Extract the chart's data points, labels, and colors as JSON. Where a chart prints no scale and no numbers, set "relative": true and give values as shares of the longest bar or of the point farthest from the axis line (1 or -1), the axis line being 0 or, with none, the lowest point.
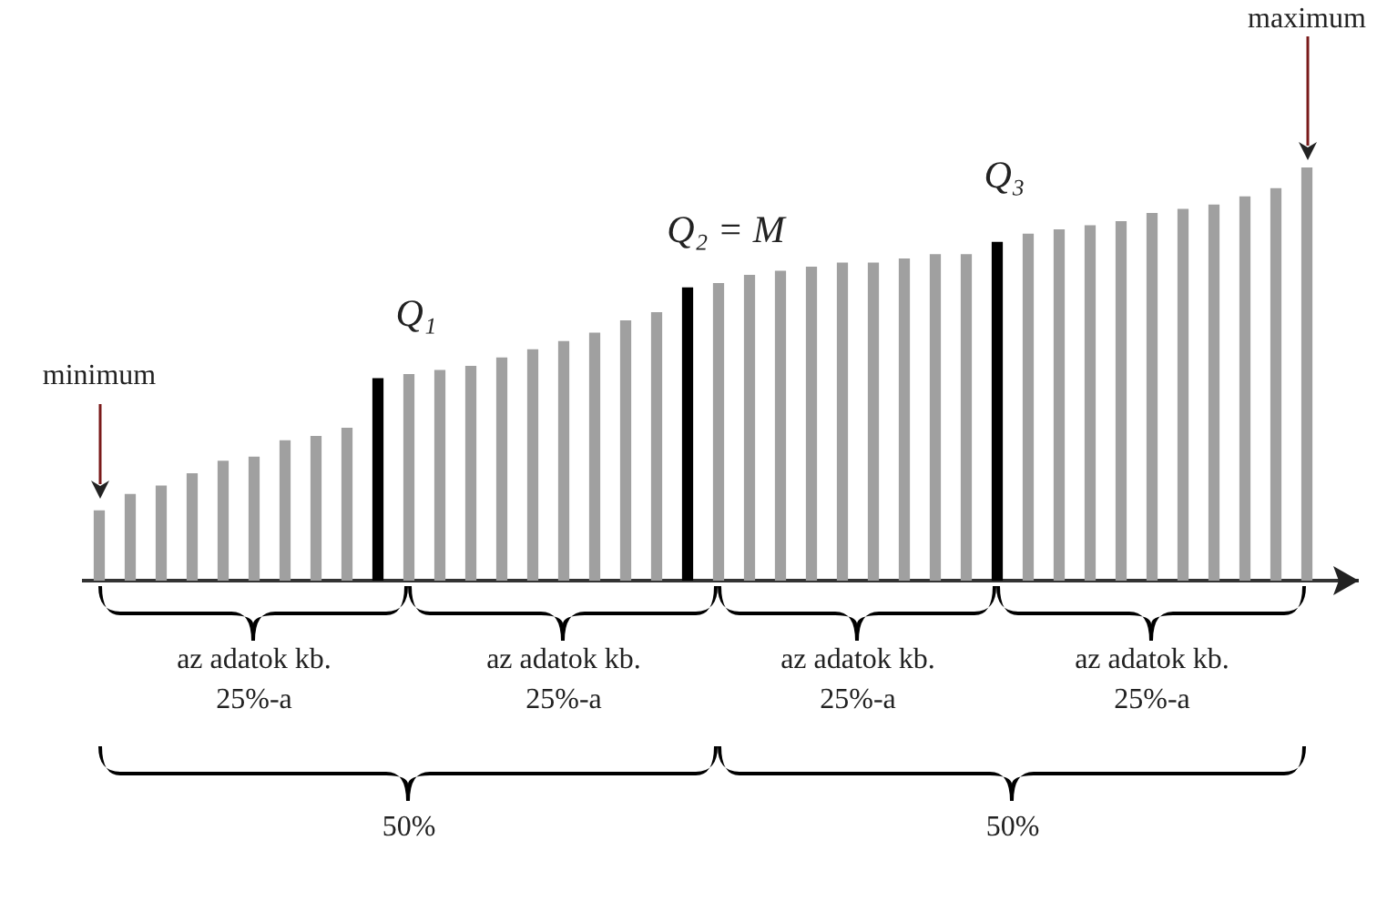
{
  "chart_data": {
    "type": "bar",
    "relative": true,
    "categories": [
      null,
      null,
      null,
      null,
      null,
      null,
      null,
      null,
      null,
      null,
      null,
      null,
      null,
      null,
      null,
      null,
      null,
      null,
      null,
      null,
      null,
      null,
      null,
      null,
      null,
      null,
      null,
      null,
      null,
      null,
      null,
      null,
      null,
      null,
      null,
      null,
      null,
      null,
      null,
      null
    ],
    "values": [
      0.17,
      0.21,
      0.23,
      0.26,
      0.29,
      0.3,
      0.34,
      0.35,
      0.37,
      0.49,
      0.5,
      0.51,
      0.52,
      0.54,
      0.56,
      0.58,
      0.6,
      0.63,
      0.65,
      0.71,
      0.72,
      0.74,
      0.75,
      0.76,
      0.77,
      0.77,
      0.78,
      0.79,
      0.79,
      0.82,
      0.84,
      0.85,
      0.86,
      0.87,
      0.89,
      0.9,
      0.91,
      0.93,
      0.95,
      1
    ],
    "colors": [
      "#a0a0a0",
      "#a0a0a0",
      "#a0a0a0",
      "#a0a0a0",
      "#a0a0a0",
      "#a0a0a0",
      "#a0a0a0",
      "#a0a0a0",
      "#a0a0a0",
      "#000000",
      "#a0a0a0",
      "#a0a0a0",
      "#a0a0a0",
      "#a0a0a0",
      "#a0a0a0",
      "#a0a0a0",
      "#a0a0a0",
      "#a0a0a0",
      "#a0a0a0",
      "#000000",
      "#a0a0a0",
      "#a0a0a0",
      "#a0a0a0",
      "#a0a0a0",
      "#a0a0a0",
      "#a0a0a0",
      "#a0a0a0",
      "#a0a0a0",
      "#a0a0a0",
      "#000000",
      "#a0a0a0",
      "#a0a0a0",
      "#a0a0a0",
      "#a0a0a0",
      "#a0a0a0",
      "#a0a0a0",
      "#a0a0a0",
      "#a0a0a0",
      "#a0a0a0",
      "#a0a0a0"
    ],
    "annotations": [
      "minimum",
      "Q₁",
      "Q₂ = M",
      "Q₃",
      "maximum",
      "az adatok kb. 25%-a",
      "az adatok kb. 25%-a",
      "az adatok kb. 25%-a",
      "az adatok kb. 25%-a",
      "50%",
      "50%"
    ],
    "grid": false,
    "legend": false
  }
}
